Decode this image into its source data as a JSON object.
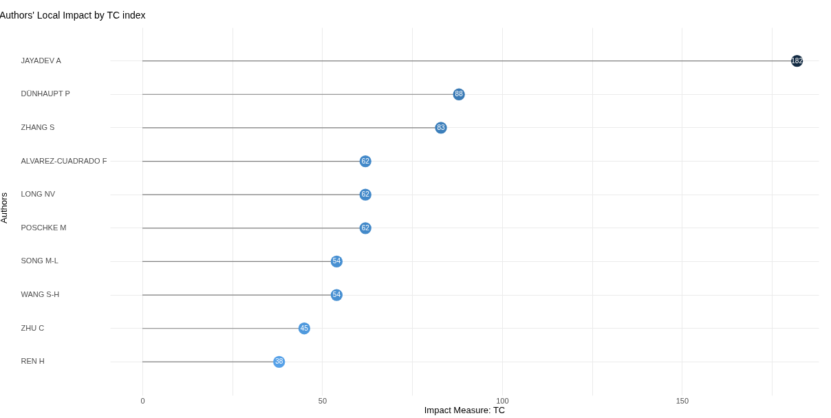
{
  "chart_data": {
    "type": "lollipop",
    "title": "Authors' Local Impact by TC index",
    "xlabel": "Impact Measure: TC",
    "ylabel": "Authors",
    "orientation": "horizontal",
    "categories": [
      "JAYADEV A",
      "DÜNHAUPT P",
      "ZHANG S",
      "ALVAREZ-CUADRADO F",
      "LONG NV",
      "POSCHKE M",
      "SONG M-L",
      "WANG S-H",
      "ZHU C",
      "REN H"
    ],
    "values": [
      182,
      88,
      83,
      62,
      62,
      62,
      54,
      54,
      45,
      38
    ],
    "colors": [
      "#132b43",
      "#3a7ab5",
      "#3c7fbb",
      "#4389c9",
      "#4389c9",
      "#4389c9",
      "#4890d2",
      "#4890d2",
      "#4f99dd",
      "#56a1e8"
    ],
    "xlim": [
      -9,
      188
    ],
    "xticks": [
      0,
      {
        "value": 25,
        "label": null
      },
      50,
      {
        "value": 75,
        "label": null
      },
      100,
      {
        "value": 125,
        "label": null
      },
      150,
      {
        "value": 175,
        "label": null
      }
    ],
    "grid": true,
    "legend": false,
    "marker": "circle",
    "data_labels": true
  }
}
